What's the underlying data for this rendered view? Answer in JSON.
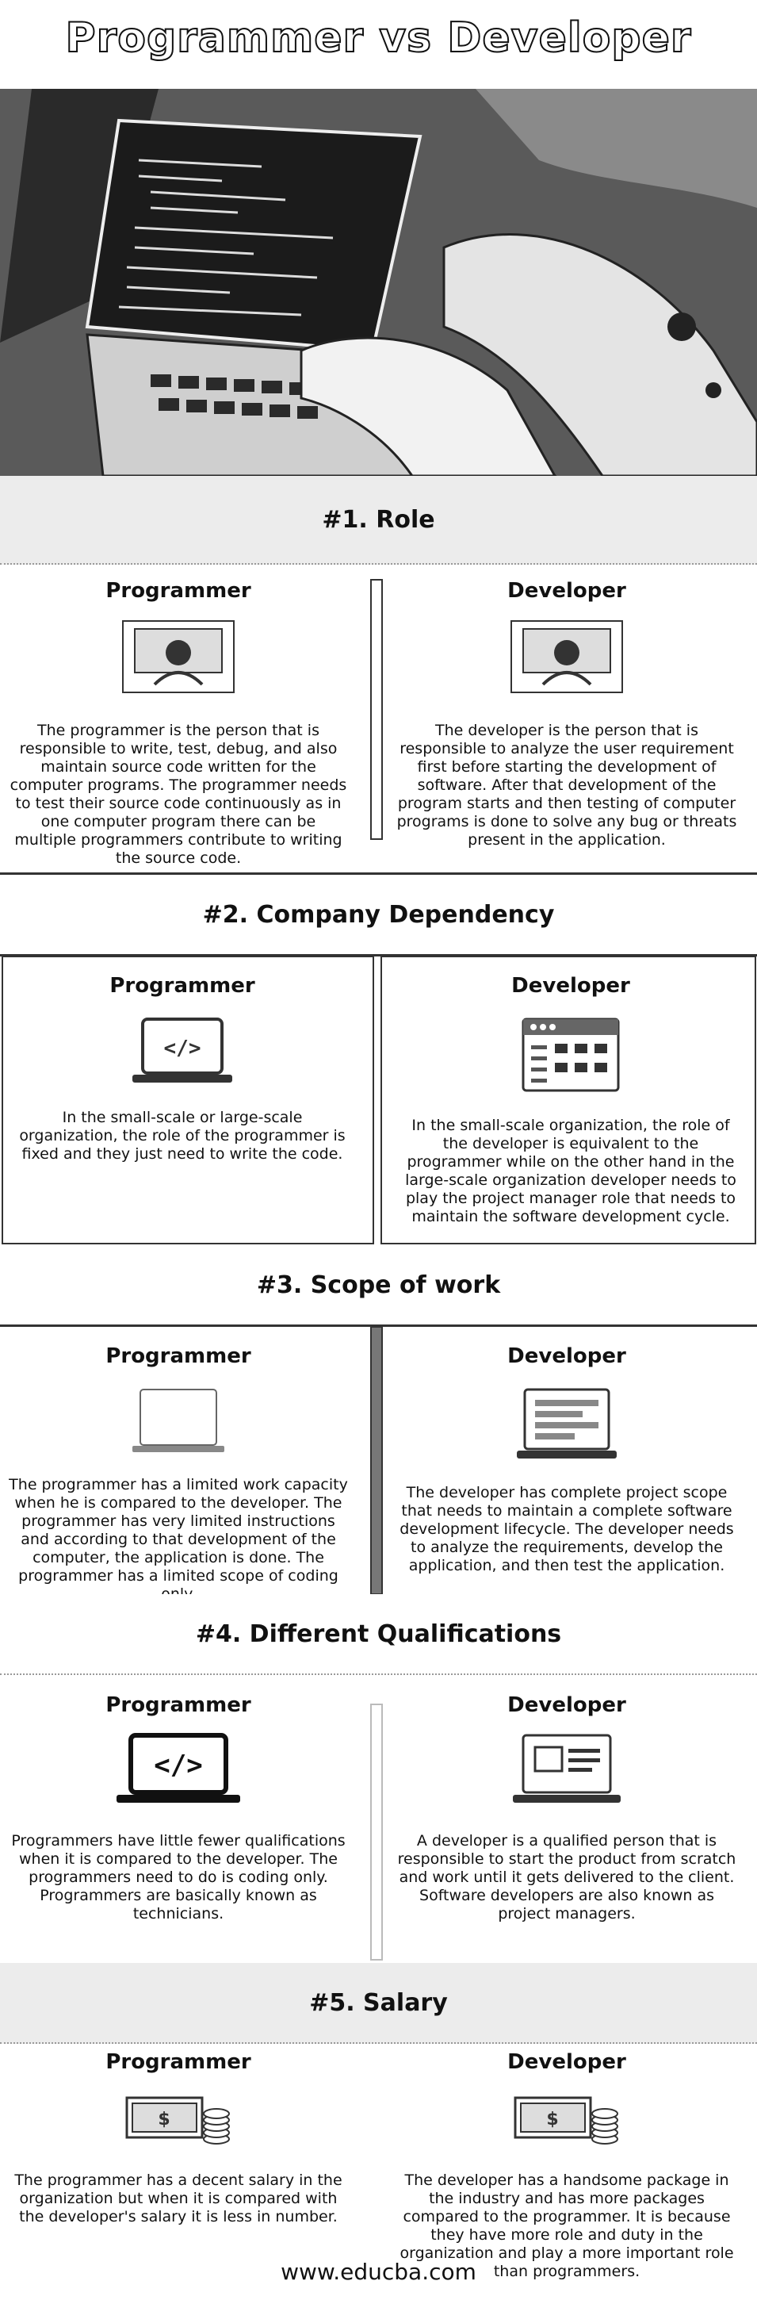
{
  "title": "Programmer vs Developer",
  "footer": "www.educba.com",
  "sections": [
    {
      "heading": "#1. Role",
      "left": {
        "title": "Programmer",
        "text": "The programmer is the person that is responsible to write, test, debug, and also maintain source code written for the computer programs. The programmer needs to test their source code continuously as in one computer program there can be multiple programmers contribute to writing the source code."
      },
      "right": {
        "title": "Developer",
        "text": "The developer is the person that is responsible to analyze the user requirement first before starting the development of software. After that development of the program starts and then testing of computer programs is done to solve any bug or threats present in the application."
      }
    },
    {
      "heading": "#2. Company Dependency",
      "left": {
        "title": "Programmer",
        "text": "In the small-scale or large-scale organization, the role of the programmer is fixed and they just need to write the code."
      },
      "right": {
        "title": "Developer",
        "text": "In the small-scale organization, the role of the developer is equivalent to the programmer while on the other hand in the large-scale organization developer needs to play the project manager role that needs to maintain the software development cycle."
      }
    },
    {
      "heading": "#3. Scope of work",
      "left": {
        "title": "Programmer",
        "text": "The programmer has a limited work capacity when he is compared to the developer. The programmer has very limited instructions and according to that development of the computer, the application is done. The programmer has a limited scope of coding only."
      },
      "right": {
        "title": "Developer",
        "text": "The developer has complete project scope that needs to maintain a complete software development lifecycle. The developer needs to analyze the requirements, develop the application, and then test the application."
      }
    },
    {
      "heading": "#4. Different Qualifications",
      "left": {
        "title": "Programmer",
        "text": "Programmers have little fewer qualifications when it is compared to the developer. The programmers need to do is coding only. Programmers are basically known as technicians."
      },
      "right": {
        "title": "Developer",
        "text": "A developer is a qualified person that is responsible to start the product from scratch and work until it gets delivered to the client. Software developers are also known as project managers."
      }
    },
    {
      "heading": "#5. Salary",
      "left": {
        "title": "Programmer",
        "text": "The programmer has a decent salary in the organization but when it is compared with the developer's salary it is less in number."
      },
      "right": {
        "title": "Developer",
        "text": "The developer has a handsome package in the industry and has more packages compared to the programmer. It is because they have more role and duty in the organization and play a more important role than programmers."
      }
    }
  ]
}
